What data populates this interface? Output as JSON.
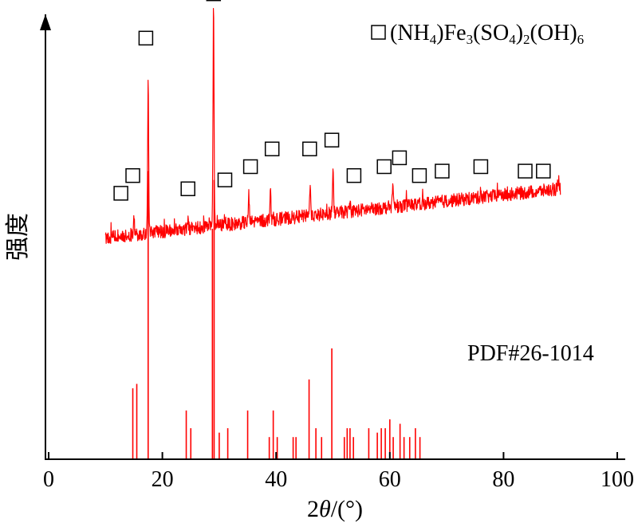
{
  "chart_data": {
    "type": "line",
    "xlabel_prefix": "2",
    "xlabel_theta": "θ",
    "xlabel_suffix": "/(°)",
    "ylabel": "强度",
    "xlim": [
      0,
      100
    ],
    "xticks": [
      "0",
      "20",
      "40",
      "60",
      "80",
      "100"
    ],
    "legend": {
      "marker": "square",
      "parts": [
        "(NH",
        "4",
        ")Fe",
        "3",
        "(SO",
        "4",
        ")",
        "2",
        "(OH)",
        "6"
      ],
      "placement": "top-right"
    },
    "reference_label": "PDF#26-1014",
    "line_color": "#ff0000",
    "xrd_pattern": {
      "x_range": [
        10,
        90
      ],
      "baseline_start": 0.5,
      "baseline_end": 0.61,
      "noise_amplitude": 0.015,
      "peaks": [
        {
          "x": 15.0,
          "height": 0.05
        },
        {
          "x": 17.5,
          "height": 0.34
        },
        {
          "x": 24.5,
          "height": 0.02
        },
        {
          "x": 29.0,
          "height": 0.49
        },
        {
          "x": 31.0,
          "height": 0.02
        },
        {
          "x": 35.2,
          "height": 0.06
        },
        {
          "x": 39.0,
          "height": 0.08
        },
        {
          "x": 46.0,
          "height": 0.08
        },
        {
          "x": 50.0,
          "height": 0.1
        },
        {
          "x": 53.0,
          "height": 0.02
        },
        {
          "x": 60.5,
          "height": 0.05
        },
        {
          "x": 76.0,
          "height": 0.02
        }
      ]
    },
    "reference_peaks": [
      {
        "x": 14.8,
        "height": 0.16
      },
      {
        "x": 15.5,
        "height": 0.17
      },
      {
        "x": 17.5,
        "height": 0.65
      },
      {
        "x": 24.2,
        "height": 0.11
      },
      {
        "x": 25.0,
        "height": 0.07
      },
      {
        "x": 28.8,
        "height": 0.52
      },
      {
        "x": 29.1,
        "height": 0.63
      },
      {
        "x": 30.0,
        "height": 0.06
      },
      {
        "x": 31.5,
        "height": 0.07
      },
      {
        "x": 35.0,
        "height": 0.11
      },
      {
        "x": 38.8,
        "height": 0.05
      },
      {
        "x": 39.5,
        "height": 0.11
      },
      {
        "x": 40.2,
        "height": 0.05
      },
      {
        "x": 43.0,
        "height": 0.05
      },
      {
        "x": 43.5,
        "height": 0.05
      },
      {
        "x": 45.8,
        "height": 0.18
      },
      {
        "x": 47.0,
        "height": 0.07
      },
      {
        "x": 48.0,
        "height": 0.05
      },
      {
        "x": 49.8,
        "height": 0.25
      },
      {
        "x": 52.0,
        "height": 0.05
      },
      {
        "x": 52.5,
        "height": 0.07
      },
      {
        "x": 53.0,
        "height": 0.07
      },
      {
        "x": 53.6,
        "height": 0.05
      },
      {
        "x": 56.3,
        "height": 0.07
      },
      {
        "x": 57.8,
        "height": 0.06
      },
      {
        "x": 58.5,
        "height": 0.07
      },
      {
        "x": 59.2,
        "height": 0.07
      },
      {
        "x": 60.0,
        "height": 0.09
      },
      {
        "x": 60.6,
        "height": 0.05
      },
      {
        "x": 61.8,
        "height": 0.08
      },
      {
        "x": 62.5,
        "height": 0.05
      },
      {
        "x": 63.5,
        "height": 0.05
      },
      {
        "x": 64.5,
        "height": 0.07
      },
      {
        "x": 65.3,
        "height": 0.05
      }
    ],
    "markers": [
      {
        "x": 12.7,
        "y": 0.6
      },
      {
        "x": 14.8,
        "y": 0.64
      },
      {
        "x": 17.1,
        "y": 0.95
      },
      {
        "x": 24.5,
        "y": 0.61
      },
      {
        "x": 29.0,
        "y": 1.05
      },
      {
        "x": 31.0,
        "y": 0.63
      },
      {
        "x": 35.5,
        "y": 0.66
      },
      {
        "x": 39.3,
        "y": 0.7
      },
      {
        "x": 45.9,
        "y": 0.7
      },
      {
        "x": 49.8,
        "y": 0.72
      },
      {
        "x": 53.7,
        "y": 0.64
      },
      {
        "x": 59.0,
        "y": 0.66
      },
      {
        "x": 61.7,
        "y": 0.68
      },
      {
        "x": 65.2,
        "y": 0.64
      },
      {
        "x": 69.2,
        "y": 0.65
      },
      {
        "x": 76.0,
        "y": 0.66
      },
      {
        "x": 83.8,
        "y": 0.65
      },
      {
        "x": 87.0,
        "y": 0.65
      }
    ]
  }
}
